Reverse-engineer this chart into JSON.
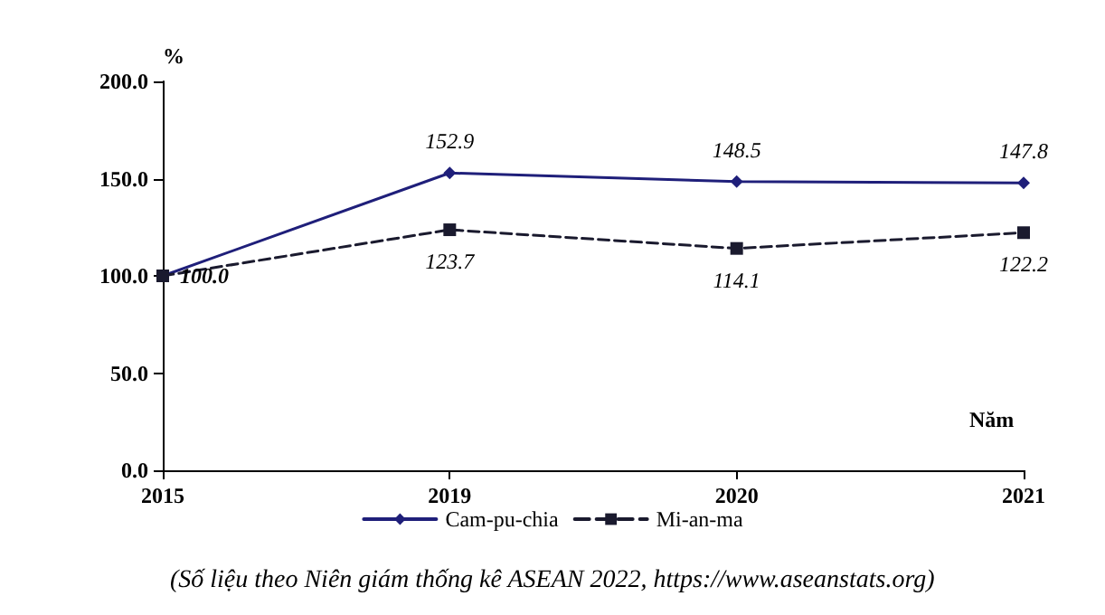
{
  "chart_data": {
    "type": "line",
    "xlabel": "Năm",
    "ylabel": "%",
    "categories": [
      "2015",
      "2019",
      "2020",
      "2021"
    ],
    "series": [
      {
        "name": "Cam-pu-chia",
        "color": "#1f1f7a",
        "values": [
          100.0,
          152.9,
          148.5,
          147.8
        ],
        "marker": "diamond",
        "line_style": "solid",
        "value_labels": [
          "100.0",
          "152.9",
          "148.5",
          "147.8"
        ]
      },
      {
        "name": "Mi-an-ma",
        "color": "#1a1a2e",
        "values": [
          100.0,
          123.7,
          114.1,
          122.2
        ],
        "marker": "square",
        "line_style": "dashed",
        "value_labels": [
          null,
          "123.7",
          "114.1",
          "122.2"
        ]
      }
    ],
    "ylim": [
      0,
      200
    ],
    "yticks": [
      {
        "value": 0,
        "label": "0.0"
      },
      {
        "value": 50,
        "label": "50.0"
      },
      {
        "value": 100,
        "label": "100.0"
      },
      {
        "value": 150,
        "label": "150.0"
      },
      {
        "value": 200,
        "label": "200.0"
      }
    ],
    "grid": false,
    "legend": "bottom",
    "annotations": [
      "(Số liệu theo Niên giám thống kê ASEAN 2022, https://www.aseanstats.org)"
    ]
  }
}
